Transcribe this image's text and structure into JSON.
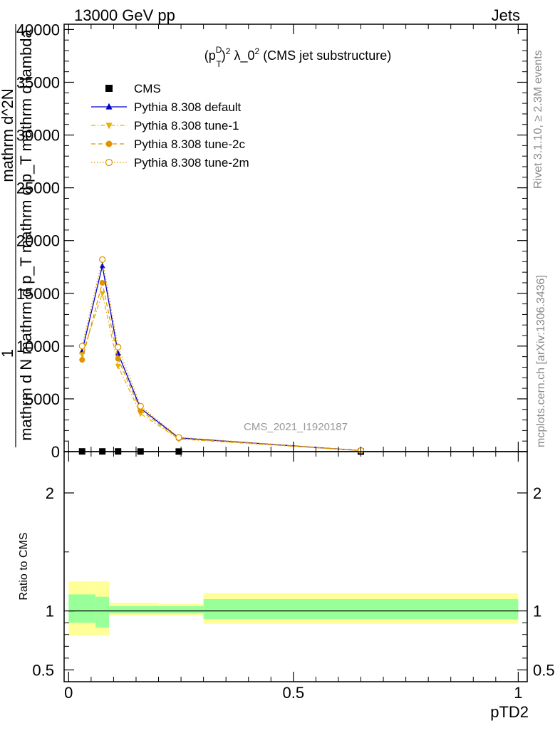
{
  "header": {
    "energy_label": "13000 GeV pp",
    "category_label": "Jets"
  },
  "side_text": {
    "rivet_version": "Rivet 3.1.10, ≥ 2.3M events",
    "source": "mcplots.cern.ch [arXiv:1306.3436]"
  },
  "chart_data": [
    {
      "type": "line",
      "title": "(p_T^D)^2 λ_0^2 (CMS jet substructure)",
      "watermark": "CMS_2021_I1920187",
      "ylabel": "mathrm d^2N / mathrm d p_T mathrm d lambda",
      "ylabel_lines": [
        "1",
        "mathrm d N mathrm d p_T mathrm d p_T mathrm d lambda",
        "mathrm d^2N"
      ],
      "xlim": [
        -0.01,
        1.02
      ],
      "ylim": [
        0,
        40500
      ],
      "yticks": [
        0,
        5000,
        10000,
        15000,
        20000,
        25000,
        30000,
        35000,
        40000
      ],
      "yticklabels": [
        "0",
        "5000",
        "10000",
        "15000",
        "20000",
        "25000",
        "30000",
        "35000",
        "40000"
      ],
      "legend_position": "top-left",
      "series": [
        {
          "name": "CMS",
          "color": "#000000",
          "marker": "square",
          "x": [
            0.03,
            0.075,
            0.11,
            0.16,
            0.245,
            0.65
          ],
          "y": [
            20,
            20,
            20,
            15,
            10,
            3
          ]
        },
        {
          "name": "Pythia 8.308 default",
          "color": "#0000cc",
          "marker": "triangle-up",
          "line": "solid",
          "x": [
            0.03,
            0.075,
            0.11,
            0.16,
            0.245,
            0.65
          ],
          "y": [
            9500,
            17600,
            9300,
            4100,
            1300,
            100
          ]
        },
        {
          "name": "Pythia 8.308 tune-1",
          "color": "#e8b000",
          "marker": "triangle-down",
          "line": "dash-dot",
          "x": [
            0.03,
            0.075,
            0.11,
            0.16,
            0.245,
            0.65
          ],
          "y": [
            9200,
            15000,
            8100,
            3600,
            1200,
            90
          ]
        },
        {
          "name": "Pythia 8.308 tune-2c",
          "color": "#e09500",
          "marker": "circle-filled",
          "line": "dashed",
          "x": [
            0.03,
            0.075,
            0.11,
            0.16,
            0.245,
            0.65
          ],
          "y": [
            8700,
            16000,
            8800,
            3900,
            1250,
            100
          ]
        },
        {
          "name": "Pythia 8.308 tune-2m",
          "color": "#e09500",
          "marker": "circle-open",
          "line": "dotted",
          "x": [
            0.03,
            0.075,
            0.11,
            0.16,
            0.245,
            0.65
          ],
          "y": [
            10000,
            18200,
            9900,
            4300,
            1350,
            110
          ]
        }
      ]
    },
    {
      "type": "area",
      "ylabel": "Ratio to CMS",
      "xlabel": "pTD2",
      "xlim": [
        -0.01,
        1.02
      ],
      "ylim": [
        0.4,
        2.35
      ],
      "yticks": [
        0.5,
        1,
        2
      ],
      "yticklabels": [
        "0.5",
        "1",
        "2"
      ],
      "xticks": [
        0,
        0.5,
        1
      ],
      "xticklabels": [
        "0",
        "0.5",
        "1"
      ],
      "reference_line": 1,
      "bands": {
        "bins": [
          [
            0,
            0.06
          ],
          [
            0.06,
            0.09
          ],
          [
            0.09,
            0.2
          ],
          [
            0.2,
            0.3
          ],
          [
            0.3,
            1.0
          ]
        ],
        "stat_low": [
          0.9,
          0.86,
          0.98,
          0.98,
          0.93
        ],
        "stat_high": [
          1.14,
          1.12,
          1.04,
          1.04,
          1.1
        ],
        "total_low": [
          0.79,
          0.79,
          0.96,
          0.96,
          0.89
        ],
        "total_high": [
          1.25,
          1.25,
          1.07,
          1.06,
          1.15
        ],
        "stat_color": "#99ff99",
        "total_color": "#ffff99"
      }
    }
  ]
}
